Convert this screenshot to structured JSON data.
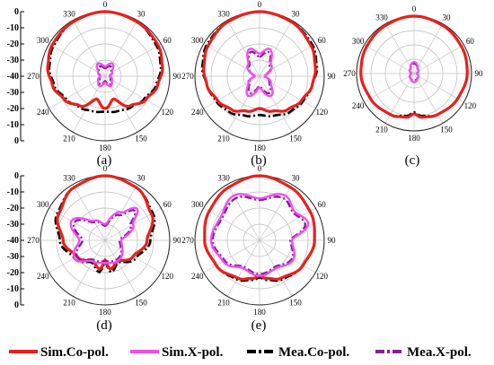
{
  "chart_data": {
    "type": "polar",
    "angle_ticks": [
      "0",
      "30",
      "60",
      "90",
      "120",
      "150",
      "180",
      "210",
      "240",
      "270",
      "300",
      "330"
    ],
    "radial_ticks": [
      "0",
      "-10",
      "-20",
      "-30",
      "-40",
      "-30",
      "-20",
      "-10",
      "0"
    ],
    "rlim": [
      -40,
      0
    ],
    "legend": [
      {
        "name": "Sim.Co-pol.",
        "color": "#e8201e",
        "style": "solid"
      },
      {
        "name": "Sim.X-pol.",
        "color": "#f04ef0",
        "style": "solid"
      },
      {
        "name": "Mea.Co-pol.",
        "color": "#000000",
        "style": "dashdot"
      },
      {
        "name": "Mea.X-pol.",
        "color": "#8a1a9a",
        "style": "dashdot"
      }
    ],
    "panels": [
      {
        "label": "(a)",
        "series": {
          "sim_co": [
            [
              0,
              0
            ],
            [
              30,
              -1
            ],
            [
              60,
              -2
            ],
            [
              80,
              -4
            ],
            [
              100,
              -7
            ],
            [
              120,
              -11
            ],
            [
              140,
              -16
            ],
            [
              160,
              -25
            ],
            [
              180,
              -20
            ],
            [
              200,
              -25
            ],
            [
              220,
              -16
            ],
            [
              240,
              -11
            ],
            [
              260,
              -7
            ],
            [
              280,
              -4
            ],
            [
              300,
              -2
            ],
            [
              330,
              -1
            ]
          ],
          "sim_x": [
            [
              0,
              -34
            ],
            [
              30,
              -31
            ],
            [
              60,
              -35
            ],
            [
              90,
              -37
            ],
            [
              120,
              -35
            ],
            [
              150,
              -33
            ],
            [
              180,
              -36
            ],
            [
              210,
              -33
            ],
            [
              240,
              -35
            ],
            [
              270,
              -37
            ],
            [
              300,
              -35
            ],
            [
              330,
              -31
            ]
          ],
          "mea_co": [
            [
              0,
              0
            ],
            [
              30,
              -1
            ],
            [
              60,
              -3
            ],
            [
              80,
              -5
            ],
            [
              100,
              -8
            ],
            [
              120,
              -12
            ],
            [
              140,
              -15
            ],
            [
              160,
              -17
            ],
            [
              180,
              -18
            ],
            [
              200,
              -17
            ],
            [
              220,
              -15
            ],
            [
              240,
              -12
            ],
            [
              260,
              -8
            ],
            [
              280,
              -5
            ],
            [
              300,
              -3
            ],
            [
              330,
              -1
            ]
          ],
          "mea_x": [
            [
              0,
              -35
            ],
            [
              30,
              -33
            ],
            [
              60,
              -36
            ],
            [
              90,
              -37
            ],
            [
              120,
              -36
            ],
            [
              150,
              -34
            ],
            [
              180,
              -37
            ],
            [
              210,
              -34
            ],
            [
              240,
              -36
            ],
            [
              270,
              -37
            ],
            [
              300,
              -36
            ],
            [
              330,
              -33
            ]
          ]
        }
      },
      {
        "label": "(b)",
        "series": {
          "sim_co": [
            [
              0,
              0
            ],
            [
              30,
              -1
            ],
            [
              60,
              -3
            ],
            [
              80,
              -5
            ],
            [
              100,
              -7
            ],
            [
              120,
              -10
            ],
            [
              140,
              -13
            ],
            [
              160,
              -17
            ],
            [
              180,
              -20
            ],
            [
              200,
              -17
            ],
            [
              220,
              -13
            ],
            [
              240,
              -10
            ],
            [
              260,
              -7
            ],
            [
              280,
              -5
            ],
            [
              300,
              -3
            ],
            [
              330,
              -1
            ]
          ],
          "sim_x": [
            [
              0,
              -26
            ],
            [
              20,
              -22
            ],
            [
              45,
              -30
            ],
            [
              90,
              -37
            ],
            [
              120,
              -32
            ],
            [
              150,
              -26
            ],
            [
              180,
              -33
            ],
            [
              210,
              -26
            ],
            [
              240,
              -32
            ],
            [
              270,
              -37
            ],
            [
              315,
              -30
            ],
            [
              340,
              -22
            ]
          ],
          "mea_co": [
            [
              0,
              0
            ],
            [
              30,
              -1
            ],
            [
              60,
              -2
            ],
            [
              80,
              -4
            ],
            [
              100,
              -7
            ],
            [
              120,
              -9
            ],
            [
              140,
              -11
            ],
            [
              160,
              -14
            ],
            [
              180,
              -16
            ],
            [
              200,
              -14
            ],
            [
              220,
              -11
            ],
            [
              240,
              -9
            ],
            [
              260,
              -7
            ],
            [
              280,
              -4
            ],
            [
              300,
              -2
            ],
            [
              330,
              -1
            ]
          ],
          "mea_x": [
            [
              0,
              -28
            ],
            [
              20,
              -24
            ],
            [
              45,
              -31
            ],
            [
              90,
              -37
            ],
            [
              120,
              -33
            ],
            [
              150,
              -28
            ],
            [
              180,
              -34
            ],
            [
              210,
              -28
            ],
            [
              240,
              -33
            ],
            [
              270,
              -37
            ],
            [
              315,
              -31
            ],
            [
              340,
              -24
            ]
          ]
        }
      },
      {
        "label": "(c)",
        "series": {
          "sim_co": [
            [
              0,
              0
            ],
            [
              30,
              -1
            ],
            [
              60,
              -2
            ],
            [
              90,
              -3
            ],
            [
              120,
              -5
            ],
            [
              150,
              -7
            ],
            [
              170,
              -9
            ],
            [
              180,
              -12
            ],
            [
              190,
              -9
            ],
            [
              210,
              -7
            ],
            [
              240,
              -5
            ],
            [
              270,
              -3
            ],
            [
              300,
              -2
            ],
            [
              330,
              -1
            ]
          ],
          "sim_x": [
            [
              0,
              -32
            ],
            [
              45,
              -36
            ],
            [
              90,
              -38
            ],
            [
              135,
              -36
            ],
            [
              180,
              -34
            ],
            [
              225,
              -36
            ],
            [
              270,
              -38
            ],
            [
              315,
              -36
            ]
          ],
          "mea_co": [
            [
              0,
              0
            ],
            [
              30,
              -1
            ],
            [
              60,
              -2
            ],
            [
              90,
              -3
            ],
            [
              120,
              -5
            ],
            [
              150,
              -7
            ],
            [
              170,
              -10
            ],
            [
              180,
              -13
            ],
            [
              190,
              -10
            ],
            [
              210,
              -7
            ],
            [
              240,
              -5
            ],
            [
              270,
              -3
            ],
            [
              300,
              -2
            ],
            [
              330,
              -1
            ]
          ],
          "mea_x": [
            [
              0,
              -33
            ],
            [
              45,
              -36
            ],
            [
              90,
              -38
            ],
            [
              135,
              -36
            ],
            [
              180,
              -35
            ],
            [
              225,
              -36
            ],
            [
              270,
              -38
            ],
            [
              315,
              -36
            ]
          ]
        }
      },
      {
        "label": "(d)",
        "series": {
          "sim_co": [
            [
              0,
              0
            ],
            [
              30,
              -2
            ],
            [
              60,
              -7
            ],
            [
              90,
              -14
            ],
            [
              120,
              -20
            ],
            [
              150,
              -25
            ],
            [
              170,
              -22
            ],
            [
              180,
              -28
            ],
            [
              190,
              -22
            ],
            [
              210,
              -25
            ],
            [
              240,
              -20
            ],
            [
              270,
              -14
            ],
            [
              300,
              -7
            ],
            [
              330,
              -2
            ]
          ],
          "sim_x": [
            [
              0,
              -30
            ],
            [
              30,
              -20
            ],
            [
              45,
              -12
            ],
            [
              60,
              -20
            ],
            [
              90,
              -30
            ],
            [
              150,
              -25
            ],
            [
              180,
              -26
            ],
            [
              210,
              -25
            ],
            [
              240,
              -18
            ],
            [
              270,
              -24
            ],
            [
              300,
              -16
            ],
            [
              330,
              -26
            ]
          ],
          "mea_co": [
            [
              0,
              0
            ],
            [
              30,
              -2
            ],
            [
              60,
              -6
            ],
            [
              90,
              -12
            ],
            [
              120,
              -18
            ],
            [
              150,
              -24
            ],
            [
              170,
              -20
            ],
            [
              180,
              -27
            ],
            [
              190,
              -20
            ],
            [
              210,
              -24
            ],
            [
              240,
              -18
            ],
            [
              270,
              -12
            ],
            [
              300,
              -6
            ],
            [
              330,
              -2
            ]
          ],
          "mea_x": [
            [
              0,
              -31
            ],
            [
              30,
              -22
            ],
            [
              45,
              -14
            ],
            [
              60,
              -22
            ],
            [
              90,
              -31
            ],
            [
              150,
              -26
            ],
            [
              180,
              -27
            ],
            [
              210,
              -26
            ],
            [
              240,
              -20
            ],
            [
              270,
              -26
            ],
            [
              300,
              -18
            ],
            [
              330,
              -27
            ]
          ]
        }
      },
      {
        "label": "(e)",
        "series": {
          "sim_co": [
            [
              0,
              0
            ],
            [
              30,
              -2
            ],
            [
              60,
              -4
            ],
            [
              90,
              -6
            ],
            [
              120,
              -9
            ],
            [
              150,
              -13
            ],
            [
              170,
              -16
            ],
            [
              180,
              -18
            ],
            [
              190,
              -16
            ],
            [
              210,
              -13
            ],
            [
              240,
              -9
            ],
            [
              270,
              -6
            ],
            [
              300,
              -4
            ],
            [
              330,
              -2
            ]
          ],
          "sim_x": [
            [
              0,
              -14
            ],
            [
              30,
              -8
            ],
            [
              50,
              -12
            ],
            [
              70,
              -8
            ],
            [
              90,
              -20
            ],
            [
              120,
              -16
            ],
            [
              150,
              -20
            ],
            [
              180,
              -18
            ],
            [
              210,
              -20
            ],
            [
              240,
              -14
            ],
            [
              270,
              -10
            ],
            [
              300,
              -12
            ],
            [
              330,
              -8
            ]
          ],
          "mea_co": [
            [
              0,
              0
            ],
            [
              30,
              -2
            ],
            [
              60,
              -4
            ],
            [
              90,
              -6
            ],
            [
              120,
              -9
            ],
            [
              150,
              -12
            ],
            [
              170,
              -15
            ],
            [
              180,
              -17
            ],
            [
              190,
              -15
            ],
            [
              210,
              -12
            ],
            [
              240,
              -9
            ],
            [
              270,
              -6
            ],
            [
              300,
              -4
            ],
            [
              330,
              -2
            ]
          ],
          "mea_x": [
            [
              0,
              -15
            ],
            [
              30,
              -10
            ],
            [
              50,
              -13
            ],
            [
              70,
              -10
            ],
            [
              90,
              -21
            ],
            [
              120,
              -17
            ],
            [
              150,
              -21
            ],
            [
              180,
              -19
            ],
            [
              210,
              -21
            ],
            [
              240,
              -15
            ],
            [
              270,
              -11
            ],
            [
              300,
              -13
            ],
            [
              330,
              -10
            ]
          ]
        }
      }
    ]
  }
}
